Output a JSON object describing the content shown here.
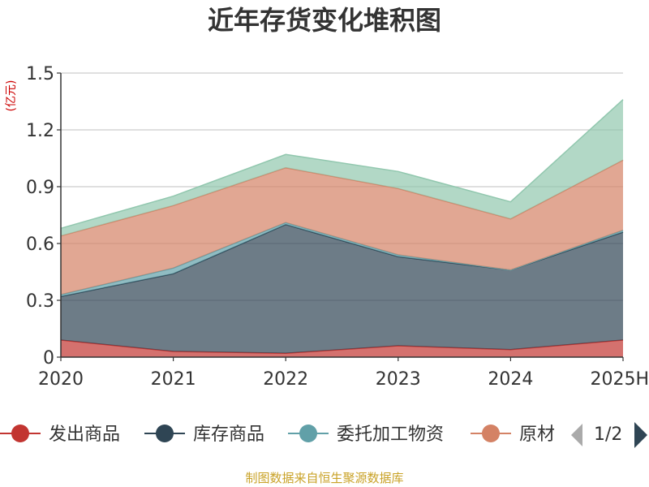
{
  "chart_data": {
    "type": "area",
    "title": "近年存货变化堆积图",
    "ylabel": "(亿元)",
    "ylim": [
      0,
      1.5
    ],
    "y_ticks": [
      "0",
      "0.3",
      "0.6",
      "0.9",
      "1.2",
      "1.5"
    ],
    "categories": [
      "2020",
      "2021",
      "2022",
      "2023",
      "2024",
      "2025H"
    ],
    "stacked": true,
    "grid": true,
    "legend_position": "bottom",
    "series": [
      {
        "name": "发出商品",
        "color": "#c23531",
        "values": [
          0.09,
          0.03,
          0.02,
          0.06,
          0.04,
          0.09
        ]
      },
      {
        "name": "库存商品",
        "color": "#2f4554",
        "values": [
          0.23,
          0.41,
          0.68,
          0.47,
          0.42,
          0.57
        ]
      },
      {
        "name": "委托加工物资",
        "color": "#61a0a8",
        "values": [
          0.01,
          0.03,
          0.01,
          0.01,
          0.0,
          0.01
        ]
      },
      {
        "name": "原材料",
        "color": "#d48265",
        "values": [
          0.31,
          0.33,
          0.29,
          0.35,
          0.27,
          0.37
        ]
      },
      {
        "color": "#91c7ae",
        "values": [
          0.04,
          0.05,
          0.07,
          0.09,
          0.09,
          0.32
        ]
      }
    ]
  },
  "legend": {
    "visible_labels": [
      "发出商品",
      "库存商品",
      "委托加工物资",
      "原材"
    ],
    "page": "1/2"
  },
  "footer": "制图数据来自恒生聚源数据库"
}
